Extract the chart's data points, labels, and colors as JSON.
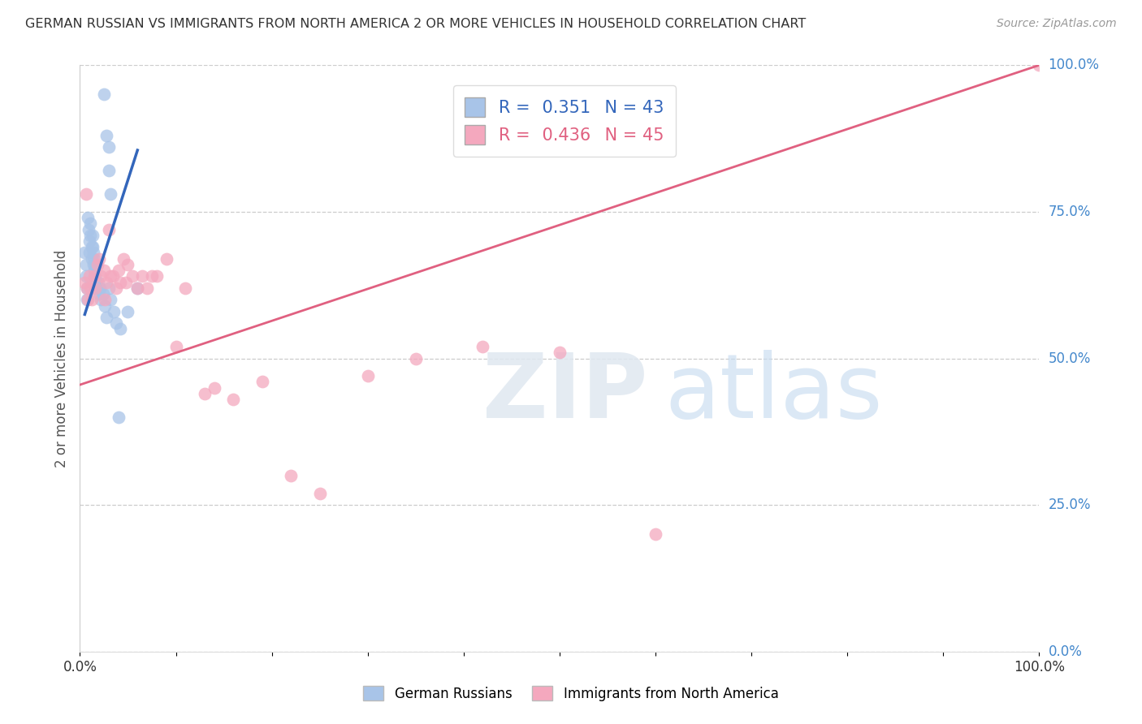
{
  "title": "GERMAN RUSSIAN VS IMMIGRANTS FROM NORTH AMERICA 2 OR MORE VEHICLES IN HOUSEHOLD CORRELATION CHART",
  "source": "Source: ZipAtlas.com",
  "ylabel": "2 or more Vehicles in Household",
  "xlim": [
    0.0,
    1.0
  ],
  "ylim": [
    0.0,
    1.0
  ],
  "blue_R": 0.351,
  "blue_N": 43,
  "pink_R": 0.436,
  "pink_N": 45,
  "blue_color": "#A8C4E8",
  "pink_color": "#F4A8BE",
  "blue_line_color": "#3366BB",
  "pink_line_color": "#E06080",
  "legend_label_blue": "German Russians",
  "legend_label_pink": "Immigrants from North America",
  "background_color": "#ffffff",
  "grid_color": "#cccccc",
  "title_color": "#333333",
  "right_axis_label_color": "#4488CC",
  "blue_x": [
    0.025,
    0.028,
    0.03,
    0.03,
    0.032,
    0.005,
    0.006,
    0.006,
    0.007,
    0.007,
    0.008,
    0.009,
    0.01,
    0.01,
    0.011,
    0.011,
    0.012,
    0.012,
    0.013,
    0.013,
    0.014,
    0.014,
    0.015,
    0.015,
    0.016,
    0.016,
    0.017,
    0.018,
    0.019,
    0.02,
    0.021,
    0.022,
    0.024,
    0.026,
    0.028,
    0.03,
    0.032,
    0.035,
    0.038,
    0.04,
    0.042,
    0.05,
    0.06
  ],
  "blue_y": [
    0.95,
    0.88,
    0.86,
    0.82,
    0.78,
    0.68,
    0.66,
    0.64,
    0.62,
    0.6,
    0.74,
    0.72,
    0.7,
    0.68,
    0.73,
    0.71,
    0.69,
    0.67,
    0.71,
    0.69,
    0.68,
    0.66,
    0.67,
    0.65,
    0.66,
    0.64,
    0.63,
    0.62,
    0.63,
    0.61,
    0.62,
    0.6,
    0.61,
    0.59,
    0.57,
    0.62,
    0.6,
    0.58,
    0.56,
    0.4,
    0.55,
    0.58,
    0.62
  ],
  "pink_x": [
    0.005,
    0.006,
    0.007,
    0.008,
    0.01,
    0.011,
    0.012,
    0.015,
    0.016,
    0.018,
    0.02,
    0.022,
    0.025,
    0.026,
    0.028,
    0.03,
    0.032,
    0.034,
    0.038,
    0.04,
    0.042,
    0.045,
    0.048,
    0.05,
    0.055,
    0.06,
    0.065,
    0.07,
    0.075,
    0.08,
    0.09,
    0.1,
    0.11,
    0.13,
    0.14,
    0.16,
    0.19,
    0.22,
    0.25,
    0.3,
    0.35,
    0.42,
    0.5,
    0.6,
    1.0
  ],
  "pink_y": [
    0.63,
    0.78,
    0.62,
    0.6,
    0.64,
    0.62,
    0.6,
    0.64,
    0.62,
    0.66,
    0.67,
    0.64,
    0.65,
    0.6,
    0.63,
    0.72,
    0.64,
    0.64,
    0.62,
    0.65,
    0.63,
    0.67,
    0.63,
    0.66,
    0.64,
    0.62,
    0.64,
    0.62,
    0.64,
    0.64,
    0.67,
    0.52,
    0.62,
    0.44,
    0.45,
    0.43,
    0.46,
    0.3,
    0.27,
    0.47,
    0.5,
    0.52,
    0.51,
    0.2,
    1.0
  ],
  "blue_line_x": [
    0.005,
    0.06
  ],
  "blue_line_y": [
    0.575,
    0.855
  ],
  "pink_line_x": [
    0.0,
    1.0
  ],
  "pink_line_y": [
    0.455,
    1.0
  ]
}
